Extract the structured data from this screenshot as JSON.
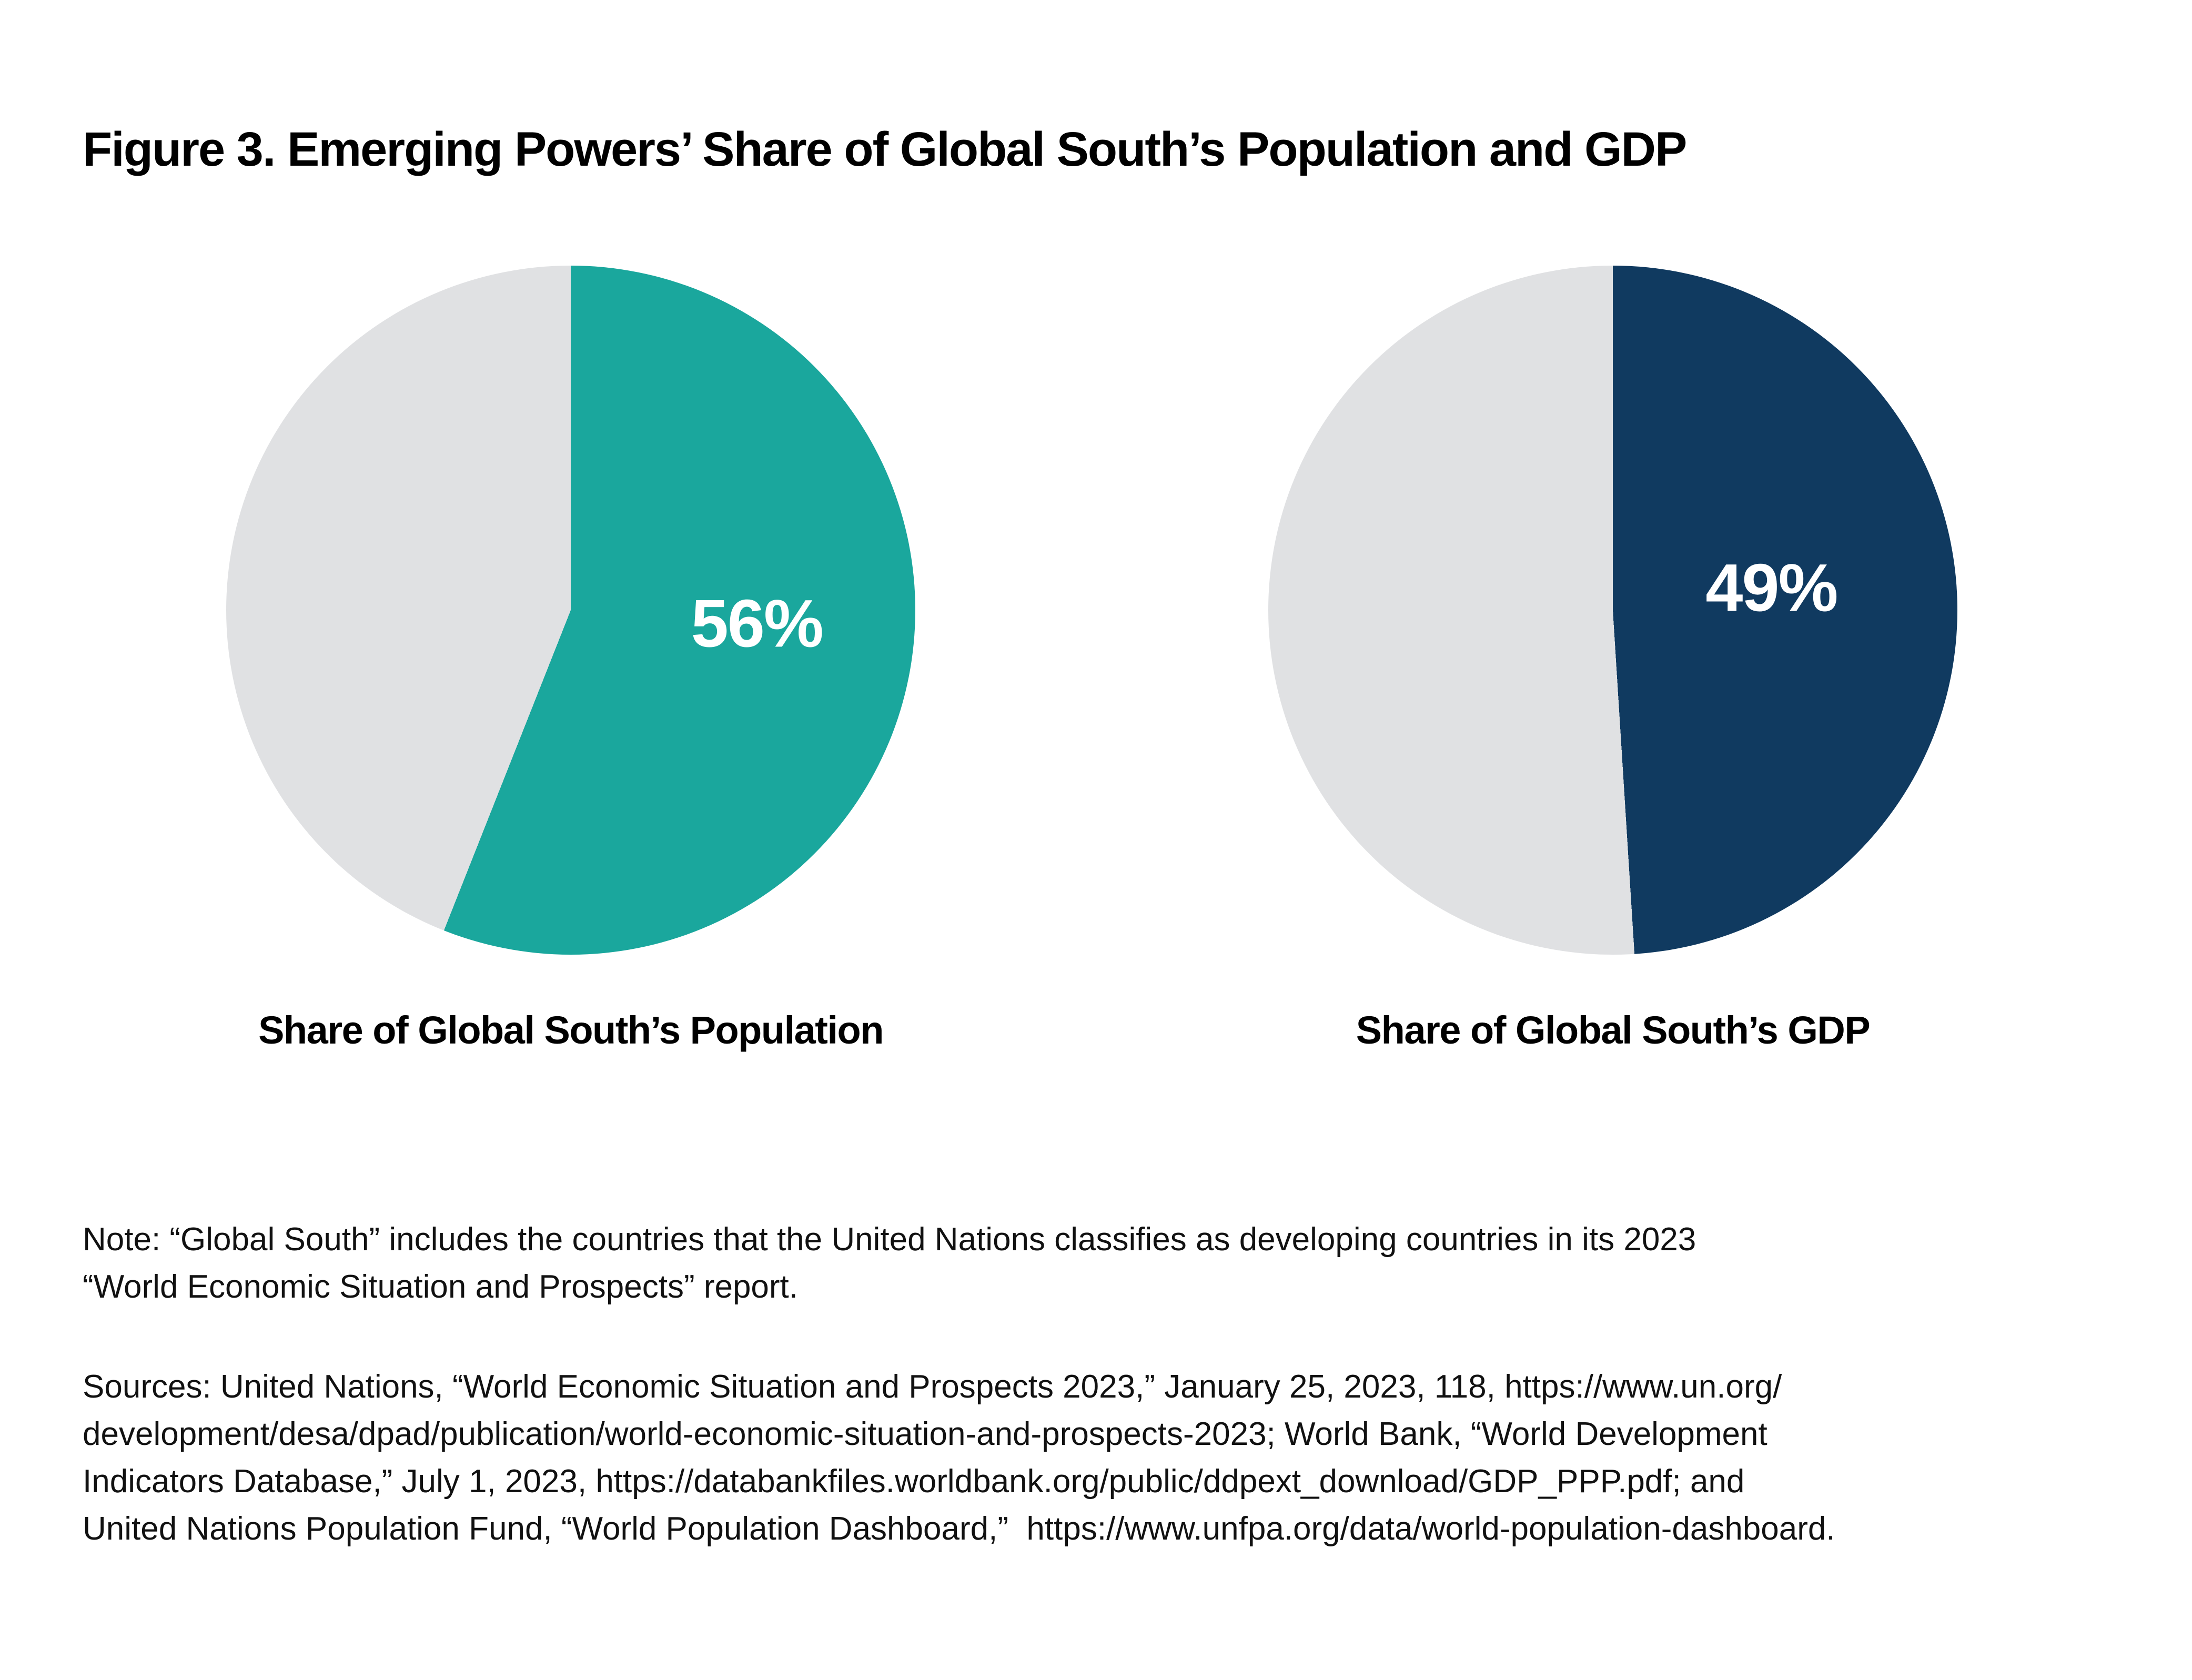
{
  "title": "Figure 3. Emerging Powers’ Share of Global South’s Population and GDP",
  "colors": {
    "teal": "#1AA79D",
    "navy": "#103A60",
    "remainder_gray": "#E0E1E3",
    "label_white": "#FFFFFF",
    "text_black": "#000000"
  },
  "chart_data": [
    {
      "type": "pie",
      "caption": "Share of Global South’s Population",
      "data_label": "56%",
      "start_angle_deg": 0,
      "direction": "clockwise",
      "legend": "none",
      "slices": [
        {
          "label": "56%",
          "value": 56,
          "color": "#1AA79D"
        },
        {
          "label": "",
          "value": 44,
          "color": "#E0E1E3"
        }
      ]
    },
    {
      "type": "pie",
      "caption": "Share of Global South’s GDP",
      "data_label": "49%",
      "start_angle_deg": 0,
      "direction": "clockwise",
      "legend": "none",
      "slices": [
        {
          "label": "49%",
          "value": 49,
          "color": "#103A60"
        },
        {
          "label": "",
          "value": 51,
          "color": "#E0E1E3"
        }
      ]
    }
  ],
  "note": {
    "lines": [
      "Note: “Global South” includes the countries that the United Nations classifies as developing countries in its 2023",
      "“World Economic Situation and Prospects” report."
    ]
  },
  "sources": {
    "lines": [
      "Sources: United Nations, “World Economic Situation and Prospects 2023,” January 25, 2023, 118, https://www.un.org/",
      "development/desa/dpad/publication/world-economic-situation-and-prospects-2023; World Bank, “World Development",
      "Indicators Database,” July 1, 2023, https://databankfiles.worldbank.org/public/ddpext_download/GDP_PPP.pdf; and",
      "United Nations Population Fund, “World Population Dashboard,”  https://www.unfpa.org/data/world-population-dashboard."
    ]
  }
}
